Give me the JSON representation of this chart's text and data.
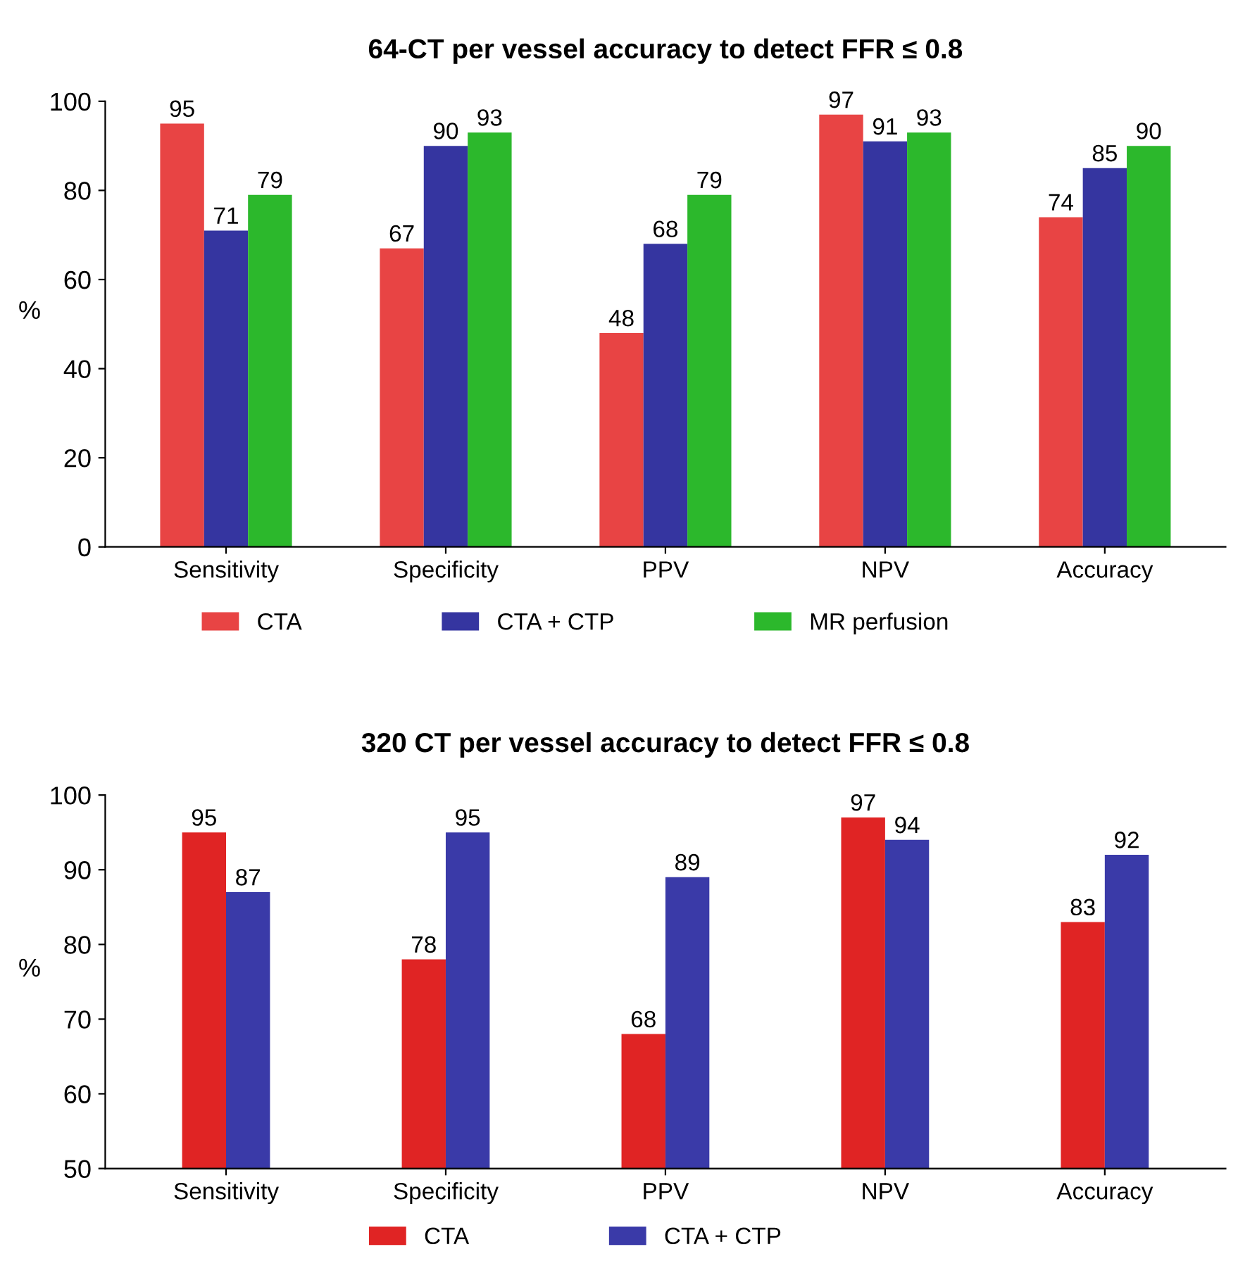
{
  "chart_data": [
    {
      "type": "bar",
      "title": "64-CT per vessel accuracy to detect FFR ≤ 0.8",
      "ylabel": "%",
      "categories": [
        "Sensitivity",
        "Specificity",
        "PPV",
        "NPV",
        "Accuracy"
      ],
      "series": [
        {
          "name": "CTA",
          "color": "#e84444",
          "values": [
            95,
            67,
            48,
            97,
            74
          ]
        },
        {
          "name": "CTA + CTP",
          "color": "#3535a0",
          "values": [
            71,
            90,
            68,
            91,
            85
          ]
        },
        {
          "name": "MR perfusion",
          "color": "#2cb82c",
          "values": [
            79,
            93,
            79,
            93,
            90
          ]
        }
      ],
      "ylim": [
        0,
        100
      ],
      "yticks": [
        0,
        20,
        40,
        60,
        80,
        100
      ],
      "data_labels": true,
      "legend": "bottom",
      "grid": false
    },
    {
      "type": "bar",
      "title": "320 CT per vessel accuracy to detect FFR ≤ 0.8",
      "ylabel": "%",
      "categories": [
        "Sensitivity",
        "Specificity",
        "PPV",
        "NPV",
        "Accuracy"
      ],
      "series": [
        {
          "name": "CTA",
          "color": "#e02424",
          "values": [
            95,
            78,
            68,
            97,
            83
          ]
        },
        {
          "name": "CTA + CTP",
          "color": "#3a3aa8",
          "values": [
            87,
            95,
            89,
            94,
            92
          ]
        }
      ],
      "ylim": [
        50,
        100
      ],
      "yticks": [
        50,
        60,
        70,
        80,
        90,
        100
      ],
      "data_labels": true,
      "legend": "bottom",
      "grid": false
    }
  ]
}
